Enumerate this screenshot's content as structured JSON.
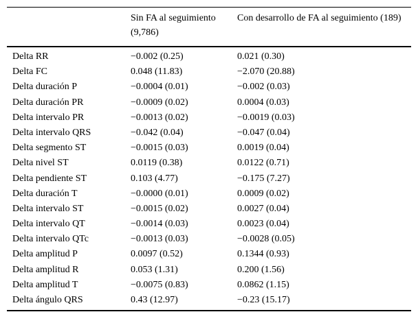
{
  "colors": {
    "background": "#ffffff",
    "text": "#000000",
    "rule": "#000000"
  },
  "table": {
    "columns": [
      {
        "label": ""
      },
      {
        "label": "Sin FA al seguimiento (9,786)"
      },
      {
        "label": "Con desarrollo de FA al seguimiento (189)"
      }
    ],
    "rows": [
      {
        "label": "Delta RR",
        "sin_fa": "−0.002 (0.25)",
        "con_fa": "0.021 (0.30)"
      },
      {
        "label": "Delta FC",
        "sin_fa": "0.048 (11.83)",
        "con_fa": "−2.070 (20.88)"
      },
      {
        "label": "Delta duración P",
        "sin_fa": "−0.0004 (0.01)",
        "con_fa": "−0.002 (0.03)"
      },
      {
        "label": "Delta duración PR",
        "sin_fa": "−0.0009 (0.02)",
        "con_fa": "0.0004 (0.03)"
      },
      {
        "label": "Delta intervalo PR",
        "sin_fa": "−0.0013 (0.02)",
        "con_fa": "−0.0019 (0.03)"
      },
      {
        "label": "Delta intervalo QRS",
        "sin_fa": "−0.042 (0.04)",
        "con_fa": "−0.047 (0.04)"
      },
      {
        "label": "Delta segmento ST",
        "sin_fa": "−0.0015 (0.03)",
        "con_fa": "0.0019 (0.04)"
      },
      {
        "label": "Delta nivel ST",
        "sin_fa": "0.0119 (0.38)",
        "con_fa": "0.0122 (0.71)"
      },
      {
        "label": "Delta pendiente ST",
        "sin_fa": "0.103 (4.77)",
        "con_fa": "−0.175 (7.27)"
      },
      {
        "label": "Delta duración T",
        "sin_fa": "−0.0000 (0.01)",
        "con_fa": "0.0009 (0.02)"
      },
      {
        "label": "Delta intervalo ST",
        "sin_fa": "−0.0015 (0.02)",
        "con_fa": "0.0027 (0.04)"
      },
      {
        "label": "Delta intervalo QT",
        "sin_fa": "−0.0014 (0.03)",
        "con_fa": "0.0023 (0.04)"
      },
      {
        "label": "Delta intervalo QTc",
        "sin_fa": "−0.0013 (0.03)",
        "con_fa": "−0.0028 (0.05)"
      },
      {
        "label": "Delta amplitud P",
        "sin_fa": "0.0097 (0.52)",
        "con_fa": "0.1344 (0.93)"
      },
      {
        "label": "Delta amplitud R",
        "sin_fa": "0.053 (1.31)",
        "con_fa": "0.200 (1.56)"
      },
      {
        "label": "Delta amplitud T",
        "sin_fa": "−0.0075 (0.83)",
        "con_fa": "0.0862 (1.15)"
      },
      {
        "label": "Delta ángulo QRS",
        "sin_fa": "0.43 (12.97)",
        "con_fa": "−0.23 (15.17)"
      }
    ]
  }
}
